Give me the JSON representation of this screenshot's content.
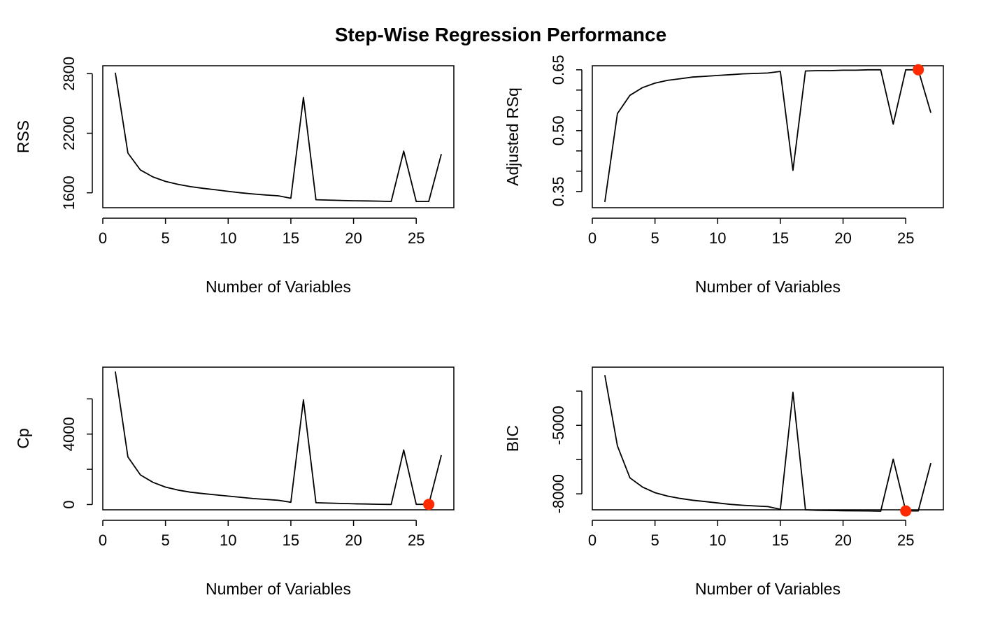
{
  "figure": {
    "title": "Step-Wise Regression Performance"
  },
  "chart_data": [
    {
      "type": "line",
      "xlabel": "Number of Variables",
      "ylabel": "RSS",
      "xlim": [
        0,
        28
      ],
      "ylim": [
        1450,
        2880
      ],
      "xticks": [
        0,
        5,
        10,
        15,
        20,
        25
      ],
      "yticks": [
        1600,
        2200,
        2800
      ],
      "x": [
        1,
        2,
        3,
        4,
        5,
        6,
        7,
        8,
        9,
        10,
        11,
        12,
        13,
        14,
        15,
        16,
        17,
        18,
        19,
        20,
        21,
        22,
        23,
        24,
        25,
        26,
        27
      ],
      "y": [
        2810,
        2000,
        1830,
        1760,
        1715,
        1685,
        1662,
        1645,
        1630,
        1615,
        1600,
        1588,
        1578,
        1570,
        1545,
        2560,
        1530,
        1527,
        1523,
        1520,
        1518,
        1516,
        1513,
        2020,
        1513,
        1513,
        1990
      ],
      "highlight": null
    },
    {
      "type": "line",
      "xlabel": "Number of Variables",
      "ylabel": "Adjusted RSq",
      "xlim": [
        0,
        28
      ],
      "ylim": [
        0.31,
        0.66
      ],
      "xticks": [
        0,
        5,
        10,
        15,
        20,
        25
      ],
      "yticks": [
        0.35,
        0.5,
        0.65
      ],
      "ytick_labels": [
        "0.35",
        "0.50",
        "0.65"
      ],
      "yminor_ticks": [
        0.4,
        0.45,
        0.55,
        0.6
      ],
      "x": [
        1,
        2,
        3,
        4,
        5,
        6,
        7,
        8,
        9,
        10,
        11,
        12,
        13,
        14,
        15,
        16,
        17,
        18,
        19,
        20,
        21,
        22,
        23,
        24,
        25,
        26,
        27
      ],
      "y": [
        0.324,
        0.542,
        0.587,
        0.606,
        0.617,
        0.624,
        0.628,
        0.632,
        0.634,
        0.636,
        0.638,
        0.64,
        0.641,
        0.642,
        0.646,
        0.402,
        0.647,
        0.648,
        0.648,
        0.649,
        0.649,
        0.65,
        0.65,
        0.516,
        0.65,
        0.65,
        0.544
      ],
      "highlight": {
        "x": 26,
        "y": 0.65,
        "color": "#ff2a00"
      }
    },
    {
      "type": "line",
      "xlabel": "Number of Variables",
      "ylabel": "Cp",
      "xlim": [
        0,
        28
      ],
      "ylim": [
        -300,
        7800
      ],
      "xticks": [
        0,
        5,
        10,
        15,
        20,
        25
      ],
      "yticks": [
        0,
        4000
      ],
      "yminor_ticks": [
        2000,
        6000
      ],
      "x": [
        1,
        2,
        3,
        4,
        5,
        6,
        7,
        8,
        9,
        10,
        11,
        12,
        13,
        14,
        15,
        16,
        17,
        18,
        19,
        20,
        21,
        22,
        23,
        24,
        25,
        26,
        27
      ],
      "y": [
        7550,
        2700,
        1680,
        1260,
        990,
        820,
        700,
        620,
        550,
        480,
        410,
        340,
        290,
        240,
        130,
        5940,
        100,
        80,
        60,
        40,
        30,
        15,
        5,
        3100,
        10,
        10,
        2800
      ],
      "highlight": {
        "x": 26,
        "y": 10,
        "color": "#ff2a00"
      }
    },
    {
      "type": "line",
      "xlabel": "Number of Variables",
      "ylabel": "BIC",
      "xlim": [
        0,
        28
      ],
      "ylim": [
        -8700,
        -2450
      ],
      "xticks": [
        0,
        5,
        10,
        15,
        20,
        25
      ],
      "yticks": [
        -8000,
        -5000
      ],
      "yminor_ticks": [
        -6500,
        -3500
      ],
      "x": [
        1,
        2,
        3,
        4,
        5,
        6,
        7,
        8,
        9,
        10,
        11,
        12,
        13,
        14,
        15,
        16,
        17,
        18,
        19,
        20,
        21,
        22,
        23,
        24,
        25,
        26,
        27
      ],
      "y": [
        -2800,
        -5900,
        -7300,
        -7700,
        -7950,
        -8100,
        -8200,
        -8280,
        -8340,
        -8400,
        -8460,
        -8500,
        -8530,
        -8560,
        -8680,
        -3550,
        -8700,
        -8720,
        -8730,
        -8740,
        -8745,
        -8750,
        -8760,
        -6480,
        -8750,
        -8750,
        -6650
      ],
      "highlight": {
        "x": 25,
        "y": -8750,
        "color": "#ff2a00"
      }
    }
  ]
}
